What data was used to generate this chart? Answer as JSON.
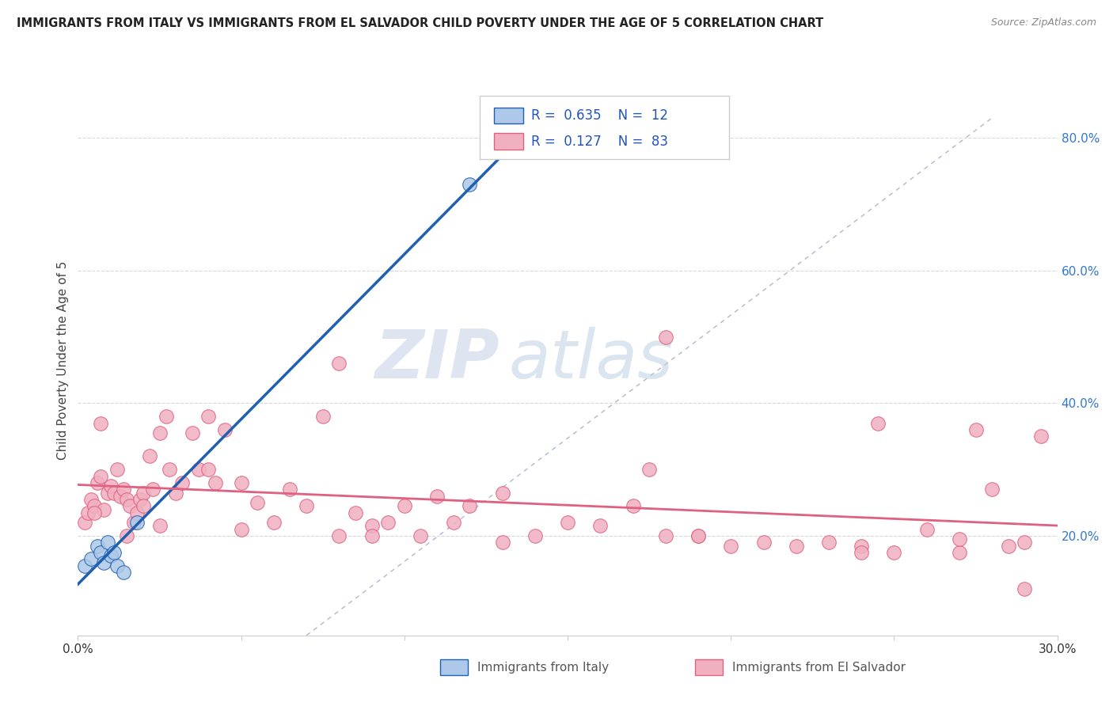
{
  "title": "IMMIGRANTS FROM ITALY VS IMMIGRANTS FROM EL SALVADOR CHILD POVERTY UNDER THE AGE OF 5 CORRELATION CHART",
  "source": "Source: ZipAtlas.com",
  "ylabel": "Child Poverty Under the Age of 5",
  "xlabel_italy": "Immigrants from Italy",
  "xlabel_elsalvador": "Immigrants from El Salvador",
  "xlim": [
    0.0,
    0.3
  ],
  "ylim": [
    0.05,
    0.88
  ],
  "right_yticks": [
    0.2,
    0.4,
    0.6,
    0.8
  ],
  "right_yticklabels": [
    "20.0%",
    "40.0%",
    "60.0%",
    "80.0%"
  ],
  "italy_R": 0.635,
  "italy_N": 12,
  "elsalvador_R": 0.127,
  "elsalvador_N": 83,
  "italy_color": "#adc8e8",
  "italy_line_color": "#2060b0",
  "elsalvador_color": "#f0b0c0",
  "elsalvador_line_color": "#e06080",
  "ref_line_color": "#b0b8cc",
  "grid_color": "#d8d8d8",
  "watermark_zip": "ZIP",
  "watermark_atlas": "atlas",
  "italy_scatter_x": [
    0.002,
    0.004,
    0.006,
    0.007,
    0.008,
    0.009,
    0.01,
    0.011,
    0.012,
    0.014,
    0.018,
    0.12
  ],
  "italy_scatter_y": [
    0.155,
    0.165,
    0.185,
    0.175,
    0.16,
    0.19,
    0.17,
    0.175,
    0.155,
    0.145,
    0.22,
    0.73
  ],
  "elsalvador_scatter_x": [
    0.002,
    0.003,
    0.004,
    0.005,
    0.006,
    0.007,
    0.008,
    0.009,
    0.01,
    0.011,
    0.012,
    0.013,
    0.014,
    0.015,
    0.016,
    0.017,
    0.018,
    0.019,
    0.02,
    0.022,
    0.023,
    0.025,
    0.027,
    0.028,
    0.03,
    0.032,
    0.035,
    0.037,
    0.04,
    0.042,
    0.045,
    0.05,
    0.055,
    0.06,
    0.065,
    0.07,
    0.075,
    0.08,
    0.085,
    0.09,
    0.095,
    0.1,
    0.105,
    0.11,
    0.115,
    0.12,
    0.13,
    0.14,
    0.15,
    0.16,
    0.17,
    0.175,
    0.18,
    0.19,
    0.2,
    0.21,
    0.22,
    0.23,
    0.24,
    0.245,
    0.25,
    0.26,
    0.27,
    0.275,
    0.28,
    0.285,
    0.29,
    0.295,
    0.005,
    0.015,
    0.025,
    0.05,
    0.09,
    0.13,
    0.19,
    0.24,
    0.27,
    0.29,
    0.007,
    0.02,
    0.04,
    0.08,
    0.18
  ],
  "elsalvador_scatter_y": [
    0.22,
    0.235,
    0.255,
    0.245,
    0.28,
    0.29,
    0.24,
    0.265,
    0.275,
    0.265,
    0.3,
    0.26,
    0.27,
    0.255,
    0.245,
    0.22,
    0.235,
    0.255,
    0.265,
    0.32,
    0.27,
    0.355,
    0.38,
    0.3,
    0.265,
    0.28,
    0.355,
    0.3,
    0.3,
    0.28,
    0.36,
    0.28,
    0.25,
    0.22,
    0.27,
    0.245,
    0.38,
    0.2,
    0.235,
    0.215,
    0.22,
    0.245,
    0.2,
    0.26,
    0.22,
    0.245,
    0.265,
    0.2,
    0.22,
    0.215,
    0.245,
    0.3,
    0.2,
    0.2,
    0.185,
    0.19,
    0.185,
    0.19,
    0.185,
    0.37,
    0.175,
    0.21,
    0.175,
    0.36,
    0.27,
    0.185,
    0.12,
    0.35,
    0.235,
    0.2,
    0.215,
    0.21,
    0.2,
    0.19,
    0.2,
    0.175,
    0.195,
    0.19,
    0.37,
    0.245,
    0.38,
    0.46,
    0.5
  ]
}
